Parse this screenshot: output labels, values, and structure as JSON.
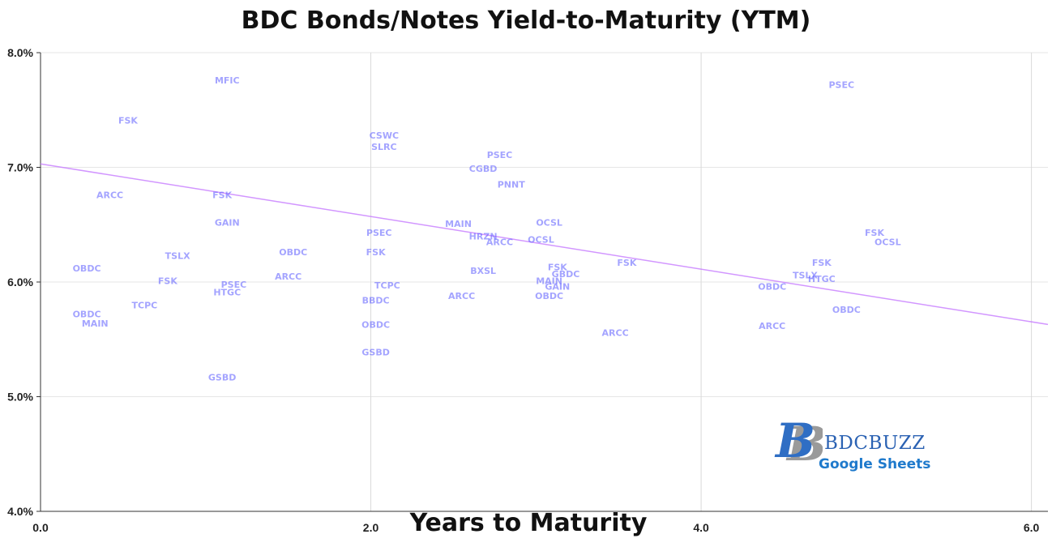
{
  "chart_data": {
    "type": "scatter",
    "title": "BDC Bonds/Notes Yield-to-Maturity (YTM)",
    "xlabel": "Years to Maturity",
    "ylabel": "",
    "xlim": [
      0,
      6.1
    ],
    "ylim": [
      4.0,
      8.0
    ],
    "x_ticks": [
      "0.0",
      "2.0",
      "4.0",
      "6.0"
    ],
    "y_ticks": [
      "4.0%",
      "5.0%",
      "6.0%",
      "7.0%",
      "8.0%"
    ],
    "grid": true,
    "point_color": "#5a5aff",
    "trendline": {
      "x": [
        0,
        6.1
      ],
      "y": [
        7.03,
        5.63
      ],
      "color": "#c77dff"
    },
    "points": [
      {
        "x": 1.13,
        "y": 7.76,
        "label": "MFIC"
      },
      {
        "x": 0.53,
        "y": 7.41,
        "label": "FSK"
      },
      {
        "x": 0.42,
        "y": 6.76,
        "label": "ARCC"
      },
      {
        "x": 1.1,
        "y": 6.76,
        "label": "FSK"
      },
      {
        "x": 1.13,
        "y": 6.52,
        "label": "GAIN"
      },
      {
        "x": 0.28,
        "y": 6.12,
        "label": "OBDC"
      },
      {
        "x": 0.83,
        "y": 6.23,
        "label": "TSLX"
      },
      {
        "x": 0.77,
        "y": 6.01,
        "label": "FSK"
      },
      {
        "x": 1.17,
        "y": 5.98,
        "label": "PSEC"
      },
      {
        "x": 1.13,
        "y": 5.91,
        "label": "HTGC"
      },
      {
        "x": 0.63,
        "y": 5.8,
        "label": "TCPC"
      },
      {
        "x": 0.28,
        "y": 5.72,
        "label": "OBDC"
      },
      {
        "x": 0.33,
        "y": 5.64,
        "label": "MAIN"
      },
      {
        "x": 1.1,
        "y": 5.17,
        "label": "GSBD"
      },
      {
        "x": 1.53,
        "y": 6.26,
        "label": "OBDC"
      },
      {
        "x": 1.5,
        "y": 6.05,
        "label": "ARCC"
      },
      {
        "x": 2.08,
        "y": 7.28,
        "label": "CSWC"
      },
      {
        "x": 2.08,
        "y": 7.18,
        "label": "SLRC"
      },
      {
        "x": 2.05,
        "y": 6.43,
        "label": "PSEC"
      },
      {
        "x": 2.03,
        "y": 6.26,
        "label": "FSK"
      },
      {
        "x": 2.1,
        "y": 5.97,
        "label": "TCPC"
      },
      {
        "x": 2.03,
        "y": 5.84,
        "label": "BBDC"
      },
      {
        "x": 2.03,
        "y": 5.63,
        "label": "OBDC"
      },
      {
        "x": 2.03,
        "y": 5.39,
        "label": "GSBD"
      },
      {
        "x": 2.78,
        "y": 7.11,
        "label": "PSEC"
      },
      {
        "x": 2.68,
        "y": 6.99,
        "label": "CGBD"
      },
      {
        "x": 2.85,
        "y": 6.85,
        "label": "PNNT"
      },
      {
        "x": 2.53,
        "y": 6.51,
        "label": "MAIN"
      },
      {
        "x": 2.68,
        "y": 6.4,
        "label": "HRZN"
      },
      {
        "x": 2.78,
        "y": 6.35,
        "label": "ARCC"
      },
      {
        "x": 2.68,
        "y": 6.1,
        "label": "BXSL"
      },
      {
        "x": 2.55,
        "y": 5.88,
        "label": "ARCC"
      },
      {
        "x": 3.08,
        "y": 6.52,
        "label": "OCSL"
      },
      {
        "x": 3.03,
        "y": 6.37,
        "label": "OCSL"
      },
      {
        "x": 3.13,
        "y": 6.13,
        "label": "FSK"
      },
      {
        "x": 3.18,
        "y": 6.07,
        "label": "GBDC"
      },
      {
        "x": 3.08,
        "y": 6.01,
        "label": "MAIN"
      },
      {
        "x": 3.13,
        "y": 5.96,
        "label": "GAIN"
      },
      {
        "x": 3.08,
        "y": 5.88,
        "label": "OBDC"
      },
      {
        "x": 3.48,
        "y": 5.56,
        "label": "ARCC"
      },
      {
        "x": 3.55,
        "y": 6.17,
        "label": "FSK"
      },
      {
        "x": 4.85,
        "y": 7.72,
        "label": "PSEC"
      },
      {
        "x": 4.43,
        "y": 5.96,
        "label": "OBDC"
      },
      {
        "x": 4.63,
        "y": 6.06,
        "label": "TSLX"
      },
      {
        "x": 4.73,
        "y": 6.17,
        "label": "FSK"
      },
      {
        "x": 4.73,
        "y": 6.03,
        "label": "HTGC"
      },
      {
        "x": 4.43,
        "y": 5.62,
        "label": "ARCC"
      },
      {
        "x": 4.88,
        "y": 5.76,
        "label": "OBDC"
      },
      {
        "x": 5.05,
        "y": 6.43,
        "label": "FSK"
      },
      {
        "x": 5.13,
        "y": 6.35,
        "label": "OCSL"
      }
    ]
  },
  "logo": {
    "brand": "BDCBUZZ",
    "sub": "Google Sheets"
  }
}
